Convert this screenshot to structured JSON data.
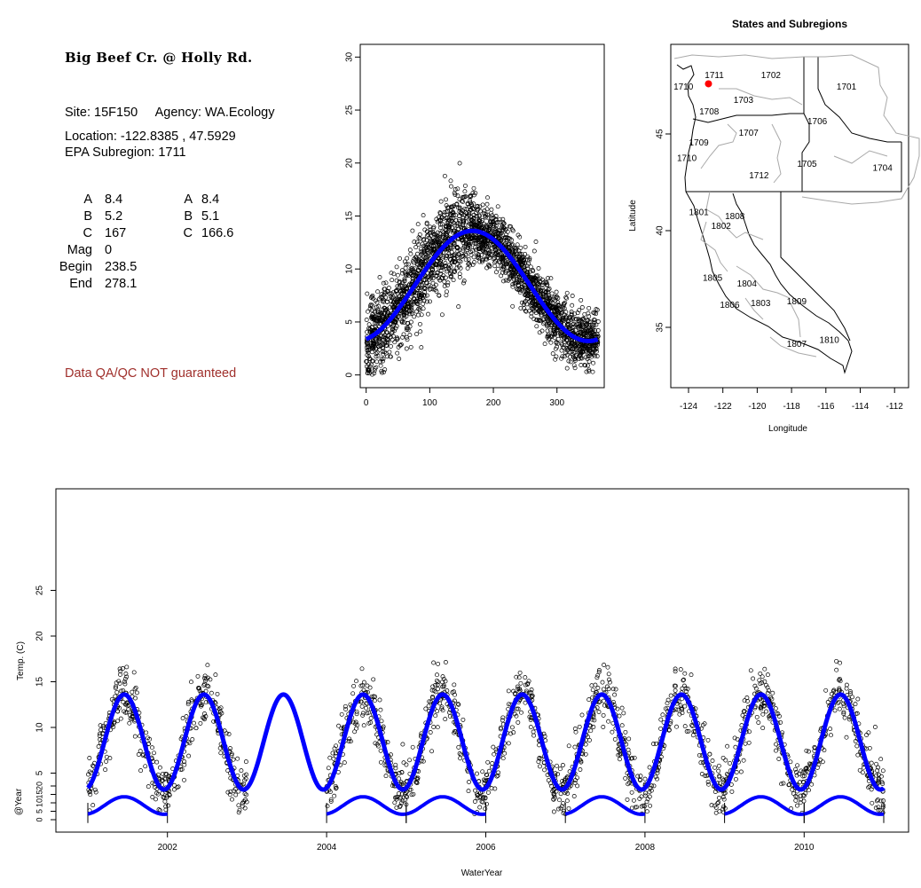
{
  "info": {
    "site_name": "Big Beef Cr. @ Holly Rd.",
    "site_label": "Site:",
    "site_id": "15F150",
    "agency_label": "Agency:",
    "agency": "WA.Ecology",
    "location_label": "Location:",
    "location": "-122.8385 , 47.5929",
    "subregion_label": "EPA Subregion:",
    "subregion": "1711",
    "params_left": [
      {
        "label": "A",
        "value": "8.4"
      },
      {
        "label": "B",
        "value": "5.2"
      },
      {
        "label": "C",
        "value": "167"
      },
      {
        "label": "Mag",
        "value": "0"
      },
      {
        "label": "Begin",
        "value": "238.5"
      },
      {
        "label": "End",
        "value": "278.1"
      }
    ],
    "params_right": [
      {
        "label": "A",
        "value": "8.4"
      },
      {
        "label": "B",
        "value": "5.1"
      },
      {
        "label": "C",
        "value": "166.6"
      }
    ],
    "disclaimer": "Data QA/QC NOT guaranteed"
  },
  "chart_data": [
    {
      "type": "scatter",
      "name_id": "day-of-year-scatter",
      "title": "",
      "xlabel": "",
      "ylabel": "",
      "xlim": [
        0,
        365
      ],
      "ylim": [
        0,
        30
      ],
      "xticks": [
        0,
        100,
        200,
        300
      ],
      "yticks": [
        0,
        5,
        10,
        15,
        20,
        25,
        30
      ],
      "fit": {
        "mean": 8.4,
        "amplitude": 5.2,
        "phase_day": 167
      },
      "points_color": "#000000",
      "fit_color": "#0000ff"
    },
    {
      "type": "map",
      "title": "States and Subregions",
      "xlabel": "Longitude",
      "ylabel": "Latitude",
      "xlim": [
        -125.5,
        -110.5
      ],
      "ylim": [
        32.2,
        49.5
      ],
      "xticks": [
        -124,
        -122,
        -120,
        -118,
        -116,
        -114,
        -112
      ],
      "yticks": [
        35,
        40,
        45
      ],
      "site": {
        "lon": -122.8385,
        "lat": 47.5929,
        "color": "#ff0000"
      },
      "subregion_labels": [
        {
          "code": "1711",
          "lon": -122.5,
          "lat": 47.9
        },
        {
          "code": "1702",
          "lon": -119.2,
          "lat": 47.9
        },
        {
          "code": "1701",
          "lon": -114.8,
          "lat": 47.3
        },
        {
          "code": "1710",
          "lon": -124.3,
          "lat": 47.3
        },
        {
          "code": "1703",
          "lon": -120.8,
          "lat": 46.6
        },
        {
          "code": "1708",
          "lon": -122.8,
          "lat": 46.0
        },
        {
          "code": "1706",
          "lon": -116.5,
          "lat": 45.5
        },
        {
          "code": "1707",
          "lon": -120.5,
          "lat": 44.9
        },
        {
          "code": "1709",
          "lon": -123.4,
          "lat": 44.4
        },
        {
          "code": "1710",
          "lon": -124.1,
          "lat": 43.6
        },
        {
          "code": "1705",
          "lon": -117.1,
          "lat": 43.3
        },
        {
          "code": "1704",
          "lon": -112.7,
          "lat": 43.1
        },
        {
          "code": "1712",
          "lon": -119.9,
          "lat": 42.7
        },
        {
          "code": "1801",
          "lon": -123.4,
          "lat": 40.8
        },
        {
          "code": "1808",
          "lon": -121.3,
          "lat": 40.6
        },
        {
          "code": "1802",
          "lon": -122.1,
          "lat": 40.1
        },
        {
          "code": "1805",
          "lon": -122.6,
          "lat": 37.4
        },
        {
          "code": "1804",
          "lon": -120.6,
          "lat": 37.1
        },
        {
          "code": "1806",
          "lon": -121.6,
          "lat": 36.0
        },
        {
          "code": "1803",
          "lon": -119.8,
          "lat": 36.1
        },
        {
          "code": "1809",
          "lon": -117.7,
          "lat": 36.2
        },
        {
          "code": "1807",
          "lon": -117.7,
          "lat": 34.0
        },
        {
          "code": "1810",
          "lon": -115.8,
          "lat": 34.2
        }
      ]
    },
    {
      "type": "scatter",
      "name_id": "time-series",
      "title": "",
      "xlabel": "WaterYear",
      "ylabel": "Temp. (C)",
      "xlim": [
        2000.75,
        2011.4
      ],
      "ylim": [
        -0.5,
        30
      ],
      "xticks": [
        2002,
        2004,
        2006,
        2008,
        2010
      ],
      "yticks": [
        5,
        10,
        15,
        20,
        25
      ],
      "data_years": [
        2001,
        2002,
        2004,
        2005,
        2006,
        2007,
        2008,
        2009,
        2010
      ],
      "fit": {
        "mean": 8.4,
        "amplitude": 5.2,
        "phase_day": 167
      },
      "points_color": "#000000",
      "fit_color": "#0000ff"
    },
    {
      "type": "line",
      "name_id": "year-panel",
      "ylabel": "@Year",
      "yticks": [
        0,
        5,
        10,
        15,
        20
      ],
      "ylim": [
        -3,
        24
      ],
      "segments": [
        {
          "start": 2001,
          "end": 2002
        },
        {
          "start": 2004,
          "end": 2005
        },
        {
          "start": 2005,
          "end": 2006
        },
        {
          "start": 2007,
          "end": 2008
        },
        {
          "start": 2009,
          "end": 2010
        },
        {
          "start": 2010,
          "end": 2011
        }
      ],
      "fit_color": "#0000ff"
    }
  ]
}
